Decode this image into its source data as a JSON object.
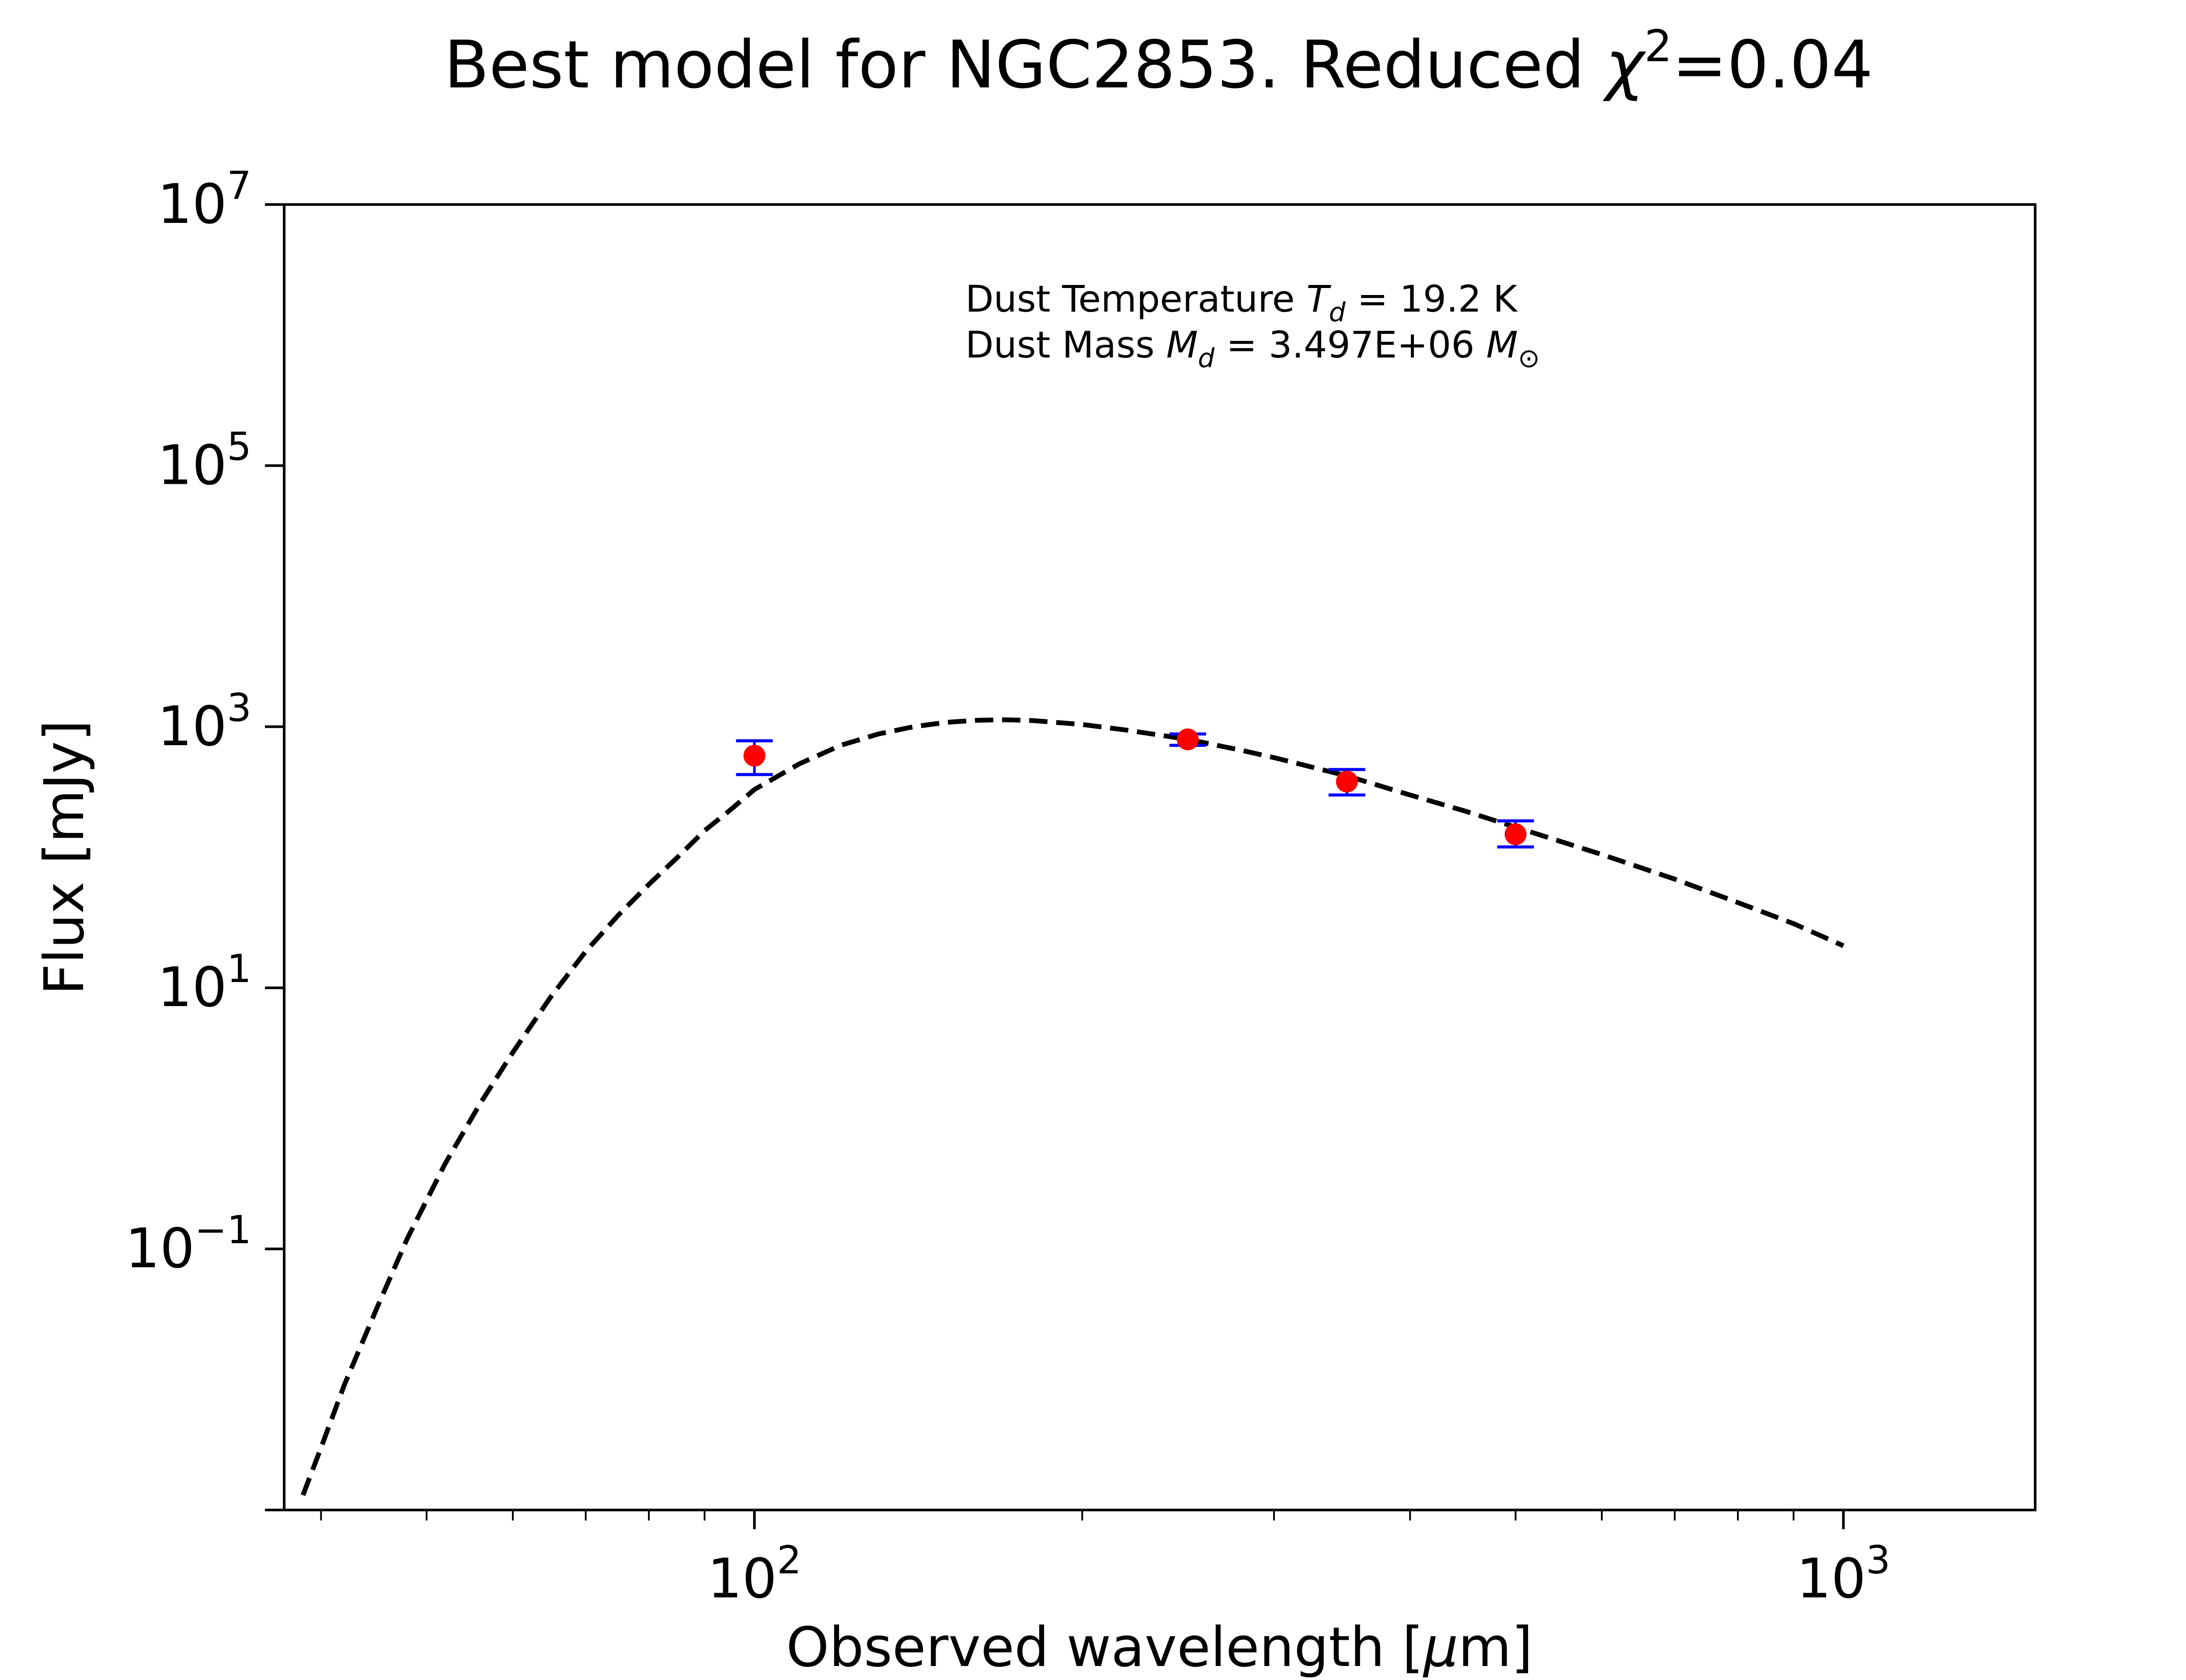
{
  "chart_data": {
    "type": "scatter",
    "title": {
      "prefix": "Best model for NGC2853. Reduced ",
      "symbol": "χ",
      "superscript": "2",
      "suffix": "=0.04"
    },
    "xlabel": {
      "prefix": "Observed wavelength [",
      "symbol": "μ",
      "suffix": "m]"
    },
    "ylabel": "Flux [mJy]",
    "xscale": "log",
    "yscale": "log",
    "xlim": [
      37,
      1500
    ],
    "ylim": [
      0.001,
      10000000
    ],
    "x_ticks": [
      {
        "value": 100,
        "base": "10",
        "exp": "2"
      },
      {
        "value": 1000,
        "base": "10",
        "exp": "3"
      }
    ],
    "x_minor_ticks": [
      40,
      50,
      60,
      70,
      80,
      90,
      200,
      300,
      400,
      500,
      600,
      700,
      800,
      900
    ],
    "y_ticks": [
      {
        "value": 0.1,
        "base": "10",
        "exp": "−1"
      },
      {
        "value": 10,
        "base": "10",
        "exp": "1"
      },
      {
        "value": 1000,
        "base": "10",
        "exp": "3"
      },
      {
        "value": 100000,
        "base": "10",
        "exp": "5"
      },
      {
        "value": 10000000,
        "base": "10",
        "exp": "7"
      }
    ],
    "y_extra_ticks": [
      0.001
    ],
    "grid": false,
    "annotation": {
      "line1": {
        "prefix": "Dust Temperature ",
        "symbol": "T",
        "sub": "d",
        "suffix": " = 19.2 K"
      },
      "line2": {
        "prefix": "Dust Mass ",
        "symbol": "M",
        "sub": "d",
        "middle": " = 3.497E+06 ",
        "symbol2": "M",
        "sub2": "⊙"
      }
    },
    "model": {
      "style": "dashed",
      "color": "#000000",
      "x": [
        38.5,
        40,
        42,
        45,
        48,
        52,
        56,
        60,
        65,
        70,
        75,
        80,
        85,
        90,
        95,
        100,
        110,
        120,
        130,
        140,
        150,
        160,
        170,
        180,
        200,
        220,
        250,
        280,
        300,
        350,
        400,
        450,
        500,
        600,
        700,
        800,
        900,
        1000
      ],
      "y": [
        0.0013,
        0.003,
        0.009,
        0.035,
        0.12,
        0.45,
        1.3,
        3.2,
        8.5,
        19,
        36,
        62,
        100,
        160,
        230,
        330,
        520,
        720,
        880,
        1000,
        1080,
        1120,
        1130,
        1115,
        1040,
        940,
        800,
        660,
        580,
        420,
        300,
        225,
        170,
        105,
        68,
        45,
        31,
        21
      ]
    },
    "observations": {
      "point_color": "#ff0000",
      "error_color": "#0000ff",
      "points": [
        {
          "x": 100,
          "y": 600,
          "err_low": 430,
          "err_high": 780
        },
        {
          "x": 250,
          "y": 800,
          "err_low": 720,
          "err_high": 880
        },
        {
          "x": 350,
          "y": 380,
          "err_low": 300,
          "err_high": 470
        },
        {
          "x": 500,
          "y": 150,
          "err_low": 120,
          "err_high": 190
        }
      ]
    }
  }
}
